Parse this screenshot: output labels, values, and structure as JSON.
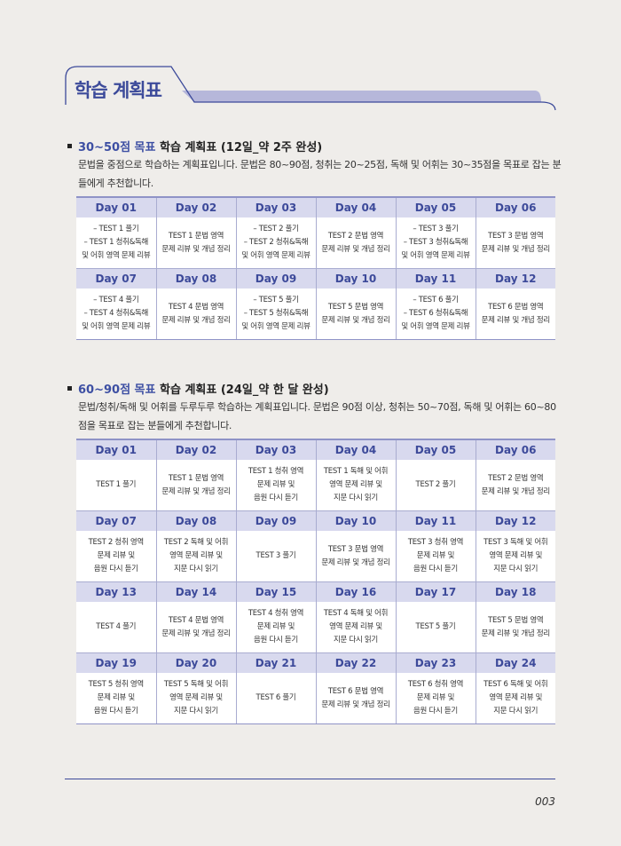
{
  "header": {
    "title": "학습 계획표"
  },
  "sections": [
    {
      "accent": "30~50점 목표",
      "title": " 학습 계획표 (12일_약 2주 완성)",
      "description": "문법을 중점으로 학습하는 계획표입니다. 문법은 80~90점, 청취는 20~25점, 독해 및 어휘는 30~35점을 목표로 잡는 분들에게 추천합니다.",
      "days": [
        {
          "day": "Day 01",
          "task": "– TEST 1 풀기\n– TEST 1 청취&독해\n및 어휘 영역 문제 리뷰"
        },
        {
          "day": "Day 02",
          "task": "TEST 1 문법 영역\n문제 리뷰 및 개념 정리"
        },
        {
          "day": "Day 03",
          "task": "– TEST 2 풀기\n– TEST 2 청취&독해\n및 어휘 영역 문제 리뷰"
        },
        {
          "day": "Day 04",
          "task": "TEST 2 문법 영역\n문제 리뷰 및 개념 정리"
        },
        {
          "day": "Day 05",
          "task": "– TEST 3 풀기\n– TEST 3 청취&독해\n및 어휘 영역 문제 리뷰"
        },
        {
          "day": "Day 06",
          "task": "TEST 3 문법 영역\n문제 리뷰 및 개념 정리"
        },
        {
          "day": "Day 07",
          "task": "– TEST 4 풀기\n– TEST 4 청취&독해\n및 어휘 영역 문제 리뷰"
        },
        {
          "day": "Day 08",
          "task": "TEST 4 문법 영역\n문제 리뷰 및 개념 정리"
        },
        {
          "day": "Day 09",
          "task": "– TEST 5 풀기\n– TEST 5 청취&독해\n및 어휘 영역 문제 리뷰"
        },
        {
          "day": "Day 10",
          "task": "TEST 5 문법 영역\n문제 리뷰 및 개념 정리"
        },
        {
          "day": "Day 11",
          "task": "– TEST 6 풀기\n– TEST 6 청취&독해\n및 어휘 영역 문제 리뷰"
        },
        {
          "day": "Day 12",
          "task": "TEST 6 문법 영역\n문제 리뷰 및 개념 정리"
        }
      ]
    },
    {
      "accent": "60~90점 목표",
      "title": " 학습 계획표 (24일_약 한 달 완성)",
      "description": "문법/청취/독해 및 어휘를 두루두루 학습하는 계획표입니다. 문법은 90점 이상, 청취는 50~70점, 독해 및 어휘는 60~80점을 목표로 잡는 분들에게 추천합니다.",
      "days": [
        {
          "day": "Day 01",
          "task": "TEST 1 풀기"
        },
        {
          "day": "Day 02",
          "task": "TEST 1 문법 영역\n문제 리뷰 및 개념 정리"
        },
        {
          "day": "Day 03",
          "task": "TEST 1 청취 영역\n문제 리뷰 및\n음원 다시 듣기"
        },
        {
          "day": "Day 04",
          "task": "TEST 1 독해 및 어휘\n영역 문제 리뷰 및\n지문 다시 읽기"
        },
        {
          "day": "Day 05",
          "task": "TEST 2 풀기"
        },
        {
          "day": "Day 06",
          "task": "TEST 2 문법 영역\n문제 리뷰 및 개념 정리"
        },
        {
          "day": "Day 07",
          "task": "TEST 2 청취 영역\n문제 리뷰 및\n음원 다시 듣기"
        },
        {
          "day": "Day 08",
          "task": "TEST 2 독해 및 어휘\n영역 문제 리뷰 및\n지문 다시 읽기"
        },
        {
          "day": "Day 09",
          "task": "TEST 3 풀기"
        },
        {
          "day": "Day 10",
          "task": "TEST 3 문법 영역\n문제 리뷰 및 개념 정리"
        },
        {
          "day": "Day 11",
          "task": "TEST 3 청취 영역\n문제 리뷰 및\n음원 다시 듣기"
        },
        {
          "day": "Day 12",
          "task": "TEST 3 독해 및 어휘\n영역 문제 리뷰 및\n지문 다시 읽기"
        },
        {
          "day": "Day 13",
          "task": "TEST 4 풀기"
        },
        {
          "day": "Day 14",
          "task": "TEST 4 문법 영역\n문제 리뷰 및 개념 정리"
        },
        {
          "day": "Day 15",
          "task": "TEST 4 청취 영역\n문제 리뷰 및\n음원 다시 듣기"
        },
        {
          "day": "Day 16",
          "task": "TEST 4 독해 및 어휘\n영역 문제 리뷰 및\n지문 다시 읽기"
        },
        {
          "day": "Day 17",
          "task": "TEST 5 풀기"
        },
        {
          "day": "Day 18",
          "task": "TEST 5 문법 영역\n문제 리뷰 및 개념 정리"
        },
        {
          "day": "Day 19",
          "task": "TEST 5 청취 영역\n문제 리뷰 및\n음원 다시 듣기"
        },
        {
          "day": "Day 20",
          "task": "TEST 5 독해 및 어휘\n영역 문제 리뷰 및\n지문 다시 읽기"
        },
        {
          "day": "Day 21",
          "task": "TEST 6 풀기"
        },
        {
          "day": "Day 22",
          "task": "TEST 6 문법 영역\n문제 리뷰 및 개념 정리"
        },
        {
          "day": "Day 23",
          "task": "TEST 6 청취 영역\n문제 리뷰 및\n음원 다시 듣기"
        },
        {
          "day": "Day 24",
          "task": "TEST 6 독해 및 어휘\n영역 문제 리뷰 및\n지문 다시 읽기"
        }
      ]
    }
  ],
  "footer": {
    "page_number": "003"
  },
  "colors": {
    "accent": "#3c4a9a",
    "header_fill": "#d8d9ee",
    "banner_bar": "#b6b7da"
  }
}
